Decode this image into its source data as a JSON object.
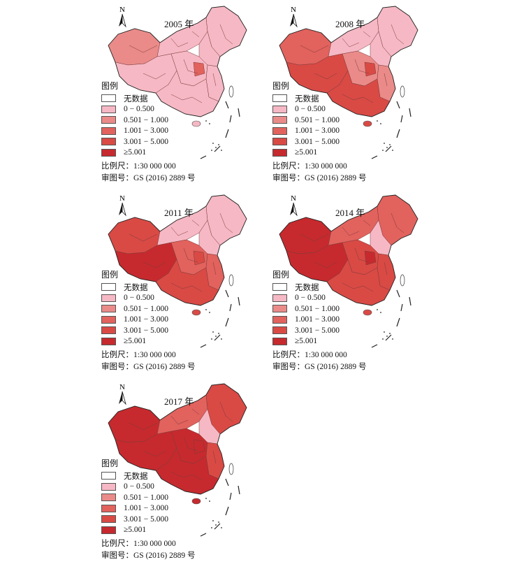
{
  "legend": {
    "title": "图例",
    "classes": [
      {
        "label": "无数据",
        "color": "#ffffff"
      },
      {
        "label": "0 − 0.500",
        "color": "#f6b8c4"
      },
      {
        "label": "0.501 − 1.000",
        "color": "#ea8b89"
      },
      {
        "label": "1.001 − 3.000",
        "color": "#e2625d"
      },
      {
        "label": "3.001 − 5.000",
        "color": "#d94a45"
      },
      {
        "label": "≥5.001",
        "color": "#c62a2e"
      }
    ]
  },
  "north_label": "N",
  "scale_text": "比例尺：1:30 000 000",
  "approval_text": "审图号：GS (2016) 2889 号",
  "maps": [
    {
      "year": "2005 年",
      "region_classes": {
        "west": 2,
        "north": 1,
        "central": 1,
        "southwest": 1,
        "northeast": 1,
        "east": 1,
        "south": 1,
        "capital": 1,
        "hotspot": 3
      }
    },
    {
      "year": "2008 年",
      "region_classes": {
        "west": 3,
        "north": 1,
        "central": 2,
        "southwest": 4,
        "northeast": 1,
        "east": 2,
        "south": 4,
        "capital": 1,
        "hotspot": 4
      }
    },
    {
      "year": "2011 年",
      "region_classes": {
        "west": 4,
        "north": 1,
        "central": 3,
        "southwest": 5,
        "northeast": 1,
        "east": 3,
        "south": 4,
        "capital": 1,
        "hotspot": 4
      }
    },
    {
      "year": "2014 年",
      "region_classes": {
        "west": 5,
        "north": 3,
        "central": 4,
        "southwest": 5,
        "northeast": 3,
        "east": 4,
        "south": 4,
        "capital": 1,
        "hotspot": 5
      }
    },
    {
      "year": "2017 年",
      "region_classes": {
        "west": 5,
        "north": 3,
        "central": 5,
        "southwest": 5,
        "northeast": 4,
        "east": 4,
        "south": 5,
        "capital": 1,
        "hotspot": 5
      }
    }
  ]
}
